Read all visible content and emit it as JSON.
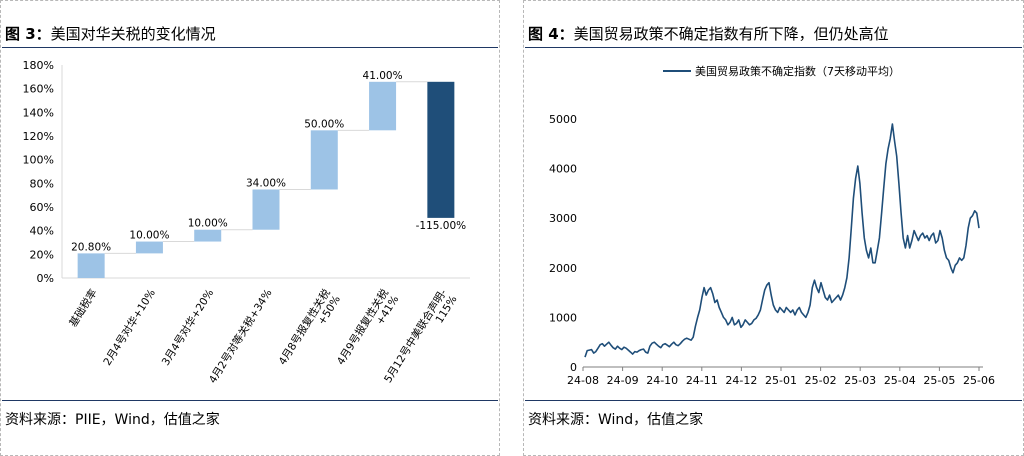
{
  "left": {
    "title_fig": "图 3：",
    "title_text": "美国对华关税的变化情况",
    "source": "资料来源：PIIE，Wind，估值之家",
    "chart_data": {
      "type": "waterfall",
      "y_ticks": [
        "0%",
        "20%",
        "40%",
        "60%",
        "80%",
        "100%",
        "120%",
        "140%",
        "160%",
        "180%"
      ],
      "ylim": [
        0,
        180
      ],
      "categories": [
        [
          "基础税率"
        ],
        [
          "2月4号对华+10%"
        ],
        [
          "3月4号对华+20%"
        ],
        [
          "4月2号对等关税+34%"
        ],
        [
          "4月8号报复性关税",
          "+50%"
        ],
        [
          "4月9号报复性关税",
          "+41%"
        ],
        [
          "5月12号中美联合声明-",
          "115%"
        ]
      ],
      "values": [
        20.8,
        10.0,
        10.0,
        34.0,
        50.0,
        41.0,
        -115.0
      ],
      "labels": [
        "20.80%",
        "10.00%",
        "10.00%",
        "34.00%",
        "50.00%",
        "41.00%",
        "-115.00%"
      ],
      "colors": {
        "light": "#9dc3e6",
        "dark": "#1f4e79"
      }
    }
  },
  "right": {
    "title_fig": "图 4：",
    "title_text": "美国贸易政策不确定指数有所下降，但仍处高位",
    "source": "资料来源：Wind，估值之家",
    "chart_data": {
      "type": "line",
      "legend": "美国贸易政策不确定指数（7天移动平均）",
      "color": "#1f4e79",
      "y_ticks": [
        "0",
        "1000",
        "2000",
        "3000",
        "4000",
        "5000"
      ],
      "ylim": [
        0,
        5000
      ],
      "x_ticks": [
        "24-08",
        "24-09",
        "24-10",
        "24-11",
        "24-12",
        "25-01",
        "25-02",
        "25-03",
        "25-04",
        "25-05",
        "25-06"
      ],
      "series_x_range": [
        "24-08",
        "25-06"
      ],
      "values": [
        200,
        330,
        340,
        350,
        280,
        310,
        380,
        450,
        470,
        420,
        460,
        500,
        440,
        390,
        360,
        420,
        380,
        350,
        400,
        380,
        340,
        300,
        260,
        310,
        300,
        330,
        350,
        360,
        300,
        280,
        420,
        480,
        500,
        460,
        420,
        390,
        450,
        470,
        440,
        410,
        460,
        500,
        450,
        430,
        470,
        520,
        560,
        580,
        560,
        540,
        600,
        820,
        1000,
        1150,
        1400,
        1600,
        1450,
        1550,
        1600,
        1480,
        1300,
        1350,
        1200,
        1100,
        1000,
        950,
        850,
        900,
        1000,
        850,
        880,
        950,
        800,
        850,
        950,
        900,
        850,
        880,
        950,
        980,
        1050,
        1150,
        1350,
        1550,
        1650,
        1700,
        1450,
        1250,
        1150,
        1100,
        1200,
        1150,
        1100,
        1200,
        1150,
        1100,
        1150,
        1050,
        1150,
        1200,
        1100,
        1050,
        1000,
        1100,
        1250,
        1600,
        1750,
        1600,
        1500,
        1700,
        1550,
        1400,
        1350,
        1450,
        1300,
        1350,
        1400,
        1450,
        1350,
        1450,
        1600,
        1800,
        2200,
        2800,
        3400,
        3800,
        4050,
        3700,
        3100,
        2600,
        2350,
        2200,
        2400,
        2100,
        2100,
        2350,
        2600,
        3100,
        3600,
        4100,
        4400,
        4600,
        4900,
        4550,
        4250,
        3700,
        3100,
        2600,
        2400,
        2650,
        2400,
        2550,
        2750,
        2650,
        2550,
        2650,
        2700,
        2600,
        2650,
        2550,
        2650,
        2700,
        2500,
        2550,
        2750,
        2600,
        2350,
        2200,
        2150,
        2000,
        1900,
        2050,
        2100,
        2200,
        2150,
        2200,
        2450,
        2800,
        3000,
        3050,
        3150,
        3100,
        2800
      ]
    }
  }
}
